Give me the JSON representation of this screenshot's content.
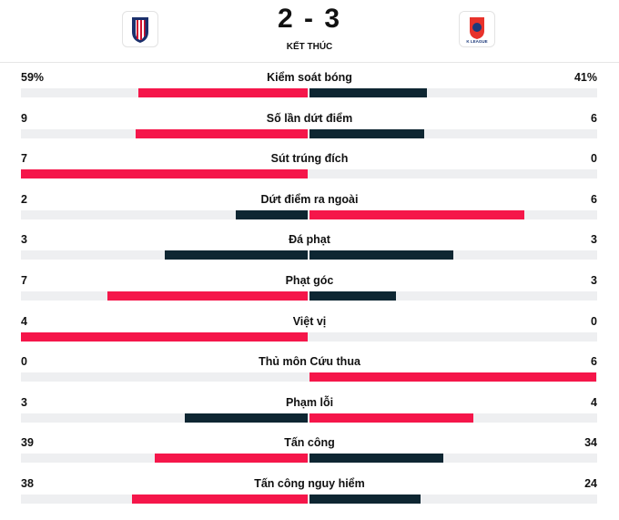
{
  "header": {
    "score": "2 - 3",
    "status": "KẾT THÚC",
    "away_logo_text": "K LEAGUE"
  },
  "colors": {
    "lead": "#f5164a",
    "trail": "#0e2632",
    "track": "#eeeff1"
  },
  "stats": [
    {
      "label": "Kiểm soát bóng",
      "values": [
        59,
        41
      ],
      "value_labels": [
        "59%",
        "41%"
      ]
    },
    {
      "label": "Số lần dứt điểm",
      "values": [
        9,
        6
      ]
    },
    {
      "label": "Sút trúng đích",
      "values": [
        7,
        0
      ]
    },
    {
      "label": "Dứt điểm ra ngoài",
      "values": [
        2,
        6
      ]
    },
    {
      "label": "Đá phạt",
      "values": [
        3,
        3
      ]
    },
    {
      "label": "Phạt góc",
      "values": [
        7,
        3
      ]
    },
    {
      "label": "Việt vị",
      "values": [
        4,
        0
      ]
    },
    {
      "label": "Thủ môn Cứu thua",
      "values": [
        0,
        6
      ]
    },
    {
      "label": "Phạm lỗi",
      "values": [
        3,
        4
      ]
    },
    {
      "label": "Tấn công",
      "values": [
        39,
        34
      ]
    },
    {
      "label": "Tấn công nguy hiểm",
      "values": [
        38,
        24
      ]
    }
  ]
}
